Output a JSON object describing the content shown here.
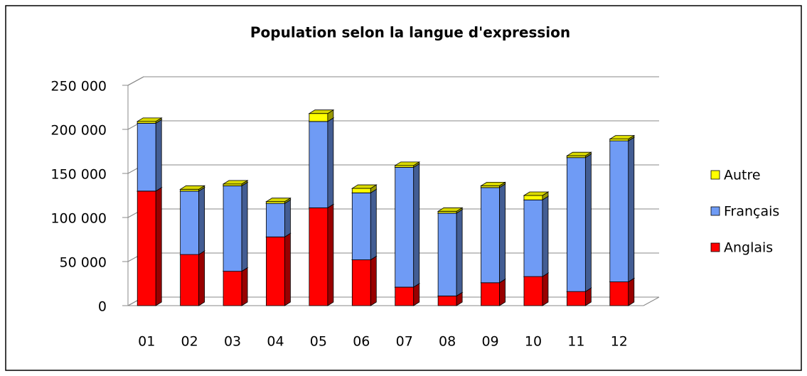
{
  "chart_data": {
    "type": "bar",
    "stacked": true,
    "title": "Population selon la langue d'expression",
    "categories": [
      "01",
      "02",
      "03",
      "04",
      "05",
      "06",
      "07",
      "08",
      "09",
      "10",
      "11",
      "12"
    ],
    "series": [
      {
        "name": "Anglais",
        "color": "#ff0000",
        "values": [
          130000,
          58000,
          39000,
          78000,
          111000,
          52000,
          21000,
          11000,
          26000,
          33000,
          16000,
          27000
        ]
      },
      {
        "name": "Français",
        "color": "#6f9bf5",
        "values": [
          77000,
          72000,
          97000,
          38000,
          98000,
          76000,
          136000,
          94000,
          108000,
          87000,
          152000,
          160000
        ]
      },
      {
        "name": "Autre",
        "color": "#ffff00",
        "values": [
          2000,
          2000,
          2000,
          2000,
          9000,
          5000,
          2000,
          2000,
          2000,
          5000,
          2000,
          2000
        ]
      }
    ],
    "ylim": [
      0,
      250000
    ],
    "yticks": [
      0,
      {
        "value": 50000,
        "label": "50 000"
      },
      {
        "value": 100000,
        "label": "100 000"
      },
      {
        "value": 150000,
        "label": "150 000"
      },
      {
        "value": 200000,
        "label": "200 000"
      },
      {
        "value": 250000,
        "label": "250 000"
      }
    ],
    "grid": true,
    "legend": "right"
  }
}
